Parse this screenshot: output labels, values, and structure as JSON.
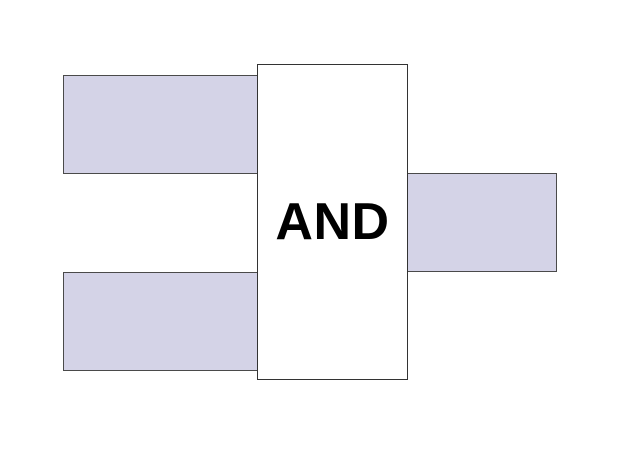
{
  "diagram": {
    "gate": {
      "label": "AND"
    },
    "colors": {
      "wire_fill": "#d4d3e7",
      "gate_fill": "#ffffff",
      "outline": "#333333",
      "text": "#000000"
    }
  }
}
